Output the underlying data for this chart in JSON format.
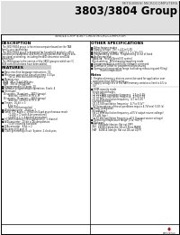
{
  "title_brand": "MITSUBISHI MICROCOMPUTERS",
  "title_main": "3803/3804 Group",
  "subtitle": "SINGLE-CHIP 8-BIT CMOS MICROCOMPUTER",
  "bg_color": "#ffffff",
  "description_title": "DESCRIPTION",
  "description_lines": [
    "The 3803/3804 group is the microcomputer based on the TAB",
    "family core technology.",
    "The 3803/3804 group is designed for household products, office",
    "automation equipment, and controlling systems that require ana-",
    "log signal processing, including the A/D conversion and D/A",
    "conversion.",
    "The 3804 group is the version of the 3803 group to which an I²C",
    "BUS control functions have been added."
  ],
  "features_title": "FEATURES",
  "features": [
    "■ Basic machine language instructions  74",
    "■ Minimum instruction execution time  0.33μs",
    "          (at 12 MHz oscillation frequency)",
    "■ Memory size",
    "  ROM   8K × 8-bit/16Kbytes",
    "  RAM   384 to 3584bytes",
    "■ Programmable I/O ports  20",
    "■ Software programmable operations  Stack: 4",
    "■ Interrupts",
    "  16 sources, 16 vectors    3803 (group)",
    "         (address: 100H to 3FFH × 3)",
    "  16 sources, 16 vectors    3804 (group)",
    "         (address: 100H to 3FFH × 3)",
    "■ Timers   16-bit × 3",
    "         8-bit × 3",
    "         (with 8-bit prescalers)",
    "■ Watchdog timer   15.63 × 1",
    "■ Serial I/O   Async 1,19,600 on Quad asynchronous mode",
    "          (1,200 × 1 (with 8-bit prescalers))",
    "          (1,200 × 1 × 4-bit first prescalers)",
    "■ I²C BUS interface (3804 group only)  1 channel",
    "■ A/D converter   10-bit × 16 comparators",
    "          (5-bit counting available)",
    "■ D/A converter   8-bit × 2",
    "■ Bit-direct I/O port  8",
    "■ Clock generating circuit  System: 2 clock pins"
  ],
  "right_specs_title": "OTHER SPECIFICATIONS",
  "right_specs": [
    "■ Other feature modes",
    "■ Supply voltage   Vcc = 4.5 to 5.5V",
    "■ Input/Output voltage   GND × 1.7 × Vcc 5.5",
    "■ Programming method   Programming in out of bank",
    "■ Analog method",
    "  Wake-up   Parallel/Serial I/O control",
    "  Block-waiting   RPG/charging/reporting mode",
    "■ Programmed/Data control by software command",
    "■ Overflow of Offset for programmed processing",
    "■ Operational temperature range (excluding measuring and filling)",
    "              Room temperature"
  ],
  "notes_title": "Notes",
  "notes": [
    "1. Peripheral memory devices cannot be used for application over",
    "   resolution than 800 m used",
    "2. Supply voltage Vcc of the RAM memory contains a limit to 4.5 to",
    "   5V"
  ],
  "right_col2_title": "OTHER SPECIFICATIONS",
  "right_col2": [
    "■ ROM capacity mode",
    "  Single speed modes",
    "  (1) 10.0 MHz oscillation frequency   2.5 to 5.5V",
    "  (2) 12.0 MHz oscillation frequency   4.0 to 5.5V",
    "  (3) 20 MHz oscillation frequency   4.7 to 5.5V *",
    "  Low speed mode",
    "  (4) 32,768 oscillation frequency   4.7 to 5.5V *",
    "  *4 These options of these operations require 4.7V(min) 5.5V (V)",
    "■ Power dissipation",
    "  80 mW (typ.)",
    "  (at 12 MHz oscillation frequency, all 5 V output source voltage)",
    "  100 μW (typ.)",
    "  (at 32 kHz oscillation frequency, all 5 V output source voltage)",
    "■ Operating temperature range  [0 to +60°C]",
    "■ Packages",
    "  QFP   64-blade (design: flat out QFP)",
    "  FPT   64/80/4-blade pin 1B or 0.5mm MARK",
    "  HAF   64/80-4 (design: flat out 1B-out LQFP)"
  ],
  "logo_text": "MITSUBISHI"
}
